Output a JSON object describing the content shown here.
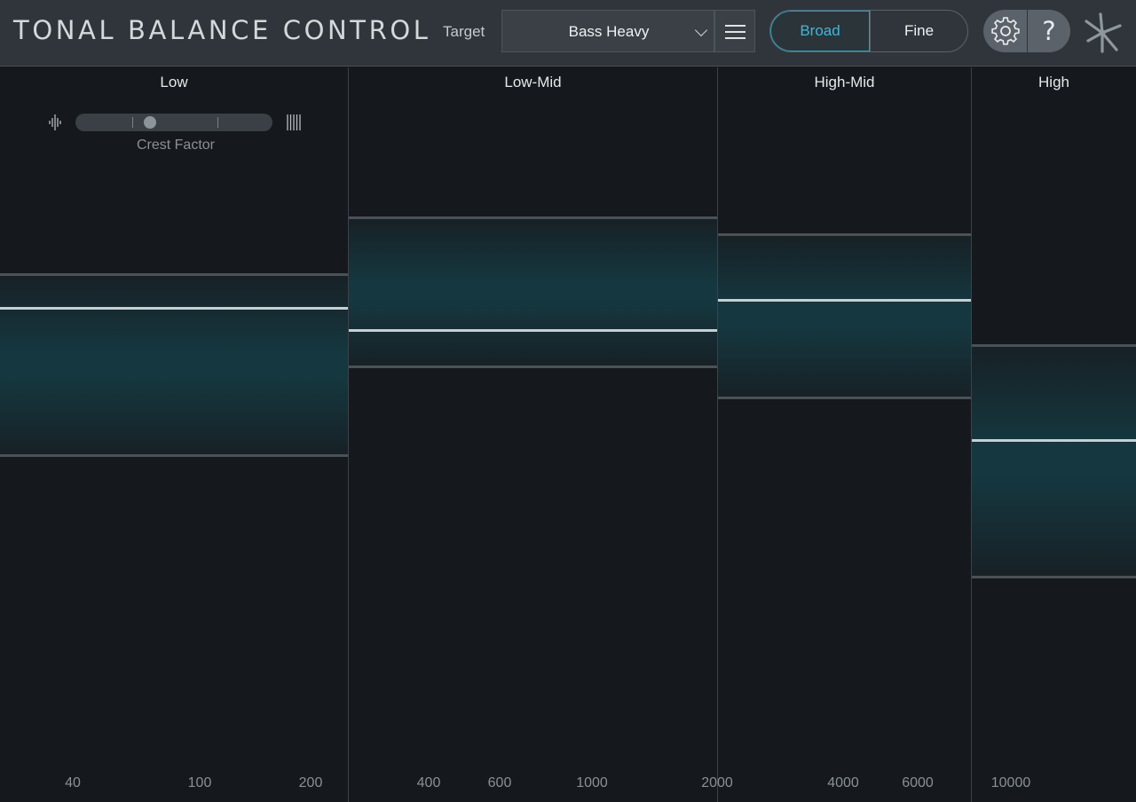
{
  "app": {
    "title": "TONAL BALANCE CONTROL"
  },
  "header": {
    "target_label": "Target",
    "target_value": "Bass Heavy",
    "mode_broad": "Broad",
    "mode_fine": "Fine",
    "active_mode": "Broad",
    "help_symbol": "?"
  },
  "icons": {
    "menu": "hamburger-icon",
    "settings": "gear-icon",
    "help": "question-icon",
    "logo": "starburst-logo-icon",
    "crest_low": "impulse-waveform-icon",
    "crest_high": "dense-bars-icon"
  },
  "colors": {
    "accent": "#3fb7d8",
    "range_fill": "#153840",
    "level_line": "#c9ced1",
    "background": "#15181c"
  },
  "crest_factor": {
    "label": "Crest Factor",
    "position": 0.38,
    "ticks": [
      0.29,
      0.72
    ]
  },
  "bands": [
    {
      "label": "Low",
      "range_top": 0.28,
      "range_bottom": 0.53,
      "level": 0.327
    },
    {
      "label": "Low-Mid",
      "range_top": 0.203,
      "range_bottom": 0.409,
      "level": 0.358
    },
    {
      "label": "High-Mid",
      "range_top": 0.226,
      "range_bottom": 0.452,
      "level": 0.316
    },
    {
      "label": "High",
      "range_top": 0.377,
      "range_bottom": 0.696,
      "level": 0.507
    }
  ],
  "freq_labels": [
    "40",
    "100",
    "200",
    "400",
    "600",
    "1000",
    "2000",
    "4000",
    "6000",
    "10000"
  ]
}
